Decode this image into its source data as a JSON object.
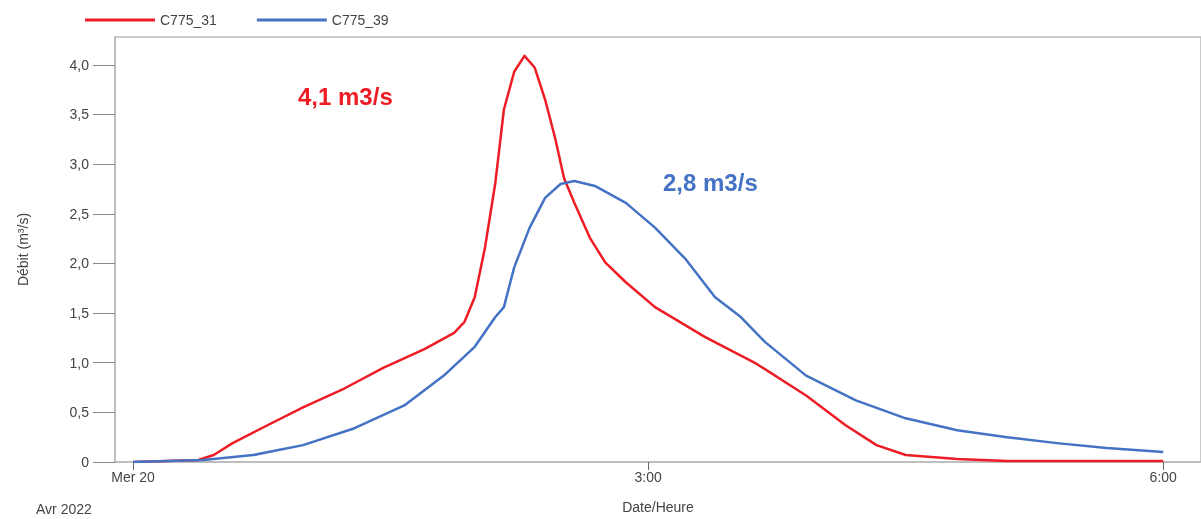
{
  "chart_data": {
    "type": "line",
    "xlabel": "Date/Heure",
    "ylabel": "Débit (m³/s)",
    "xlim": [
      -0.105,
      6.22
    ],
    "ylim": [
      0,
      4.28
    ],
    "xticks": [
      {
        "value": 0,
        "label": "Mer 20"
      },
      {
        "value": 3,
        "label": "3:00"
      },
      {
        "value": 6,
        "label": "6:00"
      }
    ],
    "yticks": [
      0,
      {
        "value": 0.5,
        "label": "0,5"
      },
      {
        "value": 1,
        "label": "1,0"
      },
      {
        "value": 1.5,
        "label": "1,5"
      },
      {
        "value": 2,
        "label": "2,0"
      },
      {
        "value": 2.5,
        "label": "2,5"
      },
      {
        "value": 3,
        "label": "3,0"
      },
      {
        "value": 3.5,
        "label": "3,5"
      },
      {
        "value": 4,
        "label": "4,0"
      }
    ],
    "grid": false,
    "legend": "top left",
    "marker": "none",
    "line_style": "solid",
    "annotations": [
      "4,1 m3/s",
      "2,8 m3/s",
      "Avr 2022"
    ],
    "series": [
      {
        "name": "C775_31",
        "color": "#ee1c25",
        "x": [
          0,
          0.38,
          0.47,
          0.58,
          0.76,
          0.99,
          1.23,
          1.46,
          1.7,
          1.87,
          1.93,
          1.99,
          2.05,
          2.11,
          2.16,
          2.22,
          2.28,
          2.34,
          2.4,
          2.46,
          2.51,
          2.57,
          2.66,
          2.75,
          2.87,
          3.04,
          3.33,
          3.63,
          3.92,
          4.15,
          4.33,
          4.5,
          4.8,
          5.09,
          6.0
        ],
        "values": [
          0,
          0.02,
          0.07,
          0.19,
          0.35,
          0.55,
          0.74,
          0.95,
          1.14,
          1.3,
          1.41,
          1.66,
          2.16,
          2.81,
          3.55,
          3.93,
          4.09,
          3.97,
          3.65,
          3.25,
          2.86,
          2.61,
          2.26,
          2.01,
          1.81,
          1.56,
          1.26,
          0.99,
          0.67,
          0.37,
          0.17,
          0.07,
          0.03,
          0.01,
          0.01
        ]
      },
      {
        "name": "C775_39",
        "color": "#4472c4",
        "x": [
          0,
          0.41,
          0.7,
          0.99,
          1.29,
          1.58,
          1.81,
          1.99,
          2.11,
          2.16,
          2.22,
          2.31,
          2.4,
          2.49,
          2.57,
          2.69,
          2.87,
          3.04,
          3.22,
          3.39,
          3.54,
          3.68,
          3.92,
          4.21,
          4.5,
          4.8,
          5.09,
          5.38,
          5.67,
          6.0
        ],
        "values": [
          0,
          0.02,
          0.07,
          0.17,
          0.34,
          0.57,
          0.87,
          1.16,
          1.46,
          1.56,
          1.96,
          2.36,
          2.66,
          2.8,
          2.83,
          2.78,
          2.61,
          2.36,
          2.04,
          1.66,
          1.46,
          1.21,
          0.87,
          0.62,
          0.44,
          0.32,
          0.25,
          0.19,
          0.14,
          0.1
        ]
      }
    ]
  }
}
